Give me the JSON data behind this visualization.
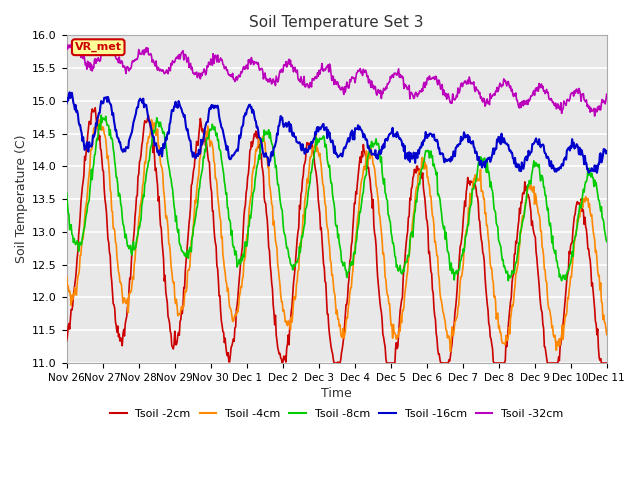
{
  "title": "Soil Temperature Set 3",
  "xlabel": "Time",
  "ylabel": "Soil Temperature (C)",
  "ylim": [
    11.0,
    16.0
  ],
  "yticks": [
    11.0,
    11.5,
    12.0,
    12.5,
    13.0,
    13.5,
    14.0,
    14.5,
    15.0,
    15.5,
    16.0
  ],
  "xtick_labels": [
    "Nov 26",
    "Nov 27",
    "Nov 28",
    "Nov 29",
    "Nov 30",
    "Dec 1",
    "Dec 2",
    "Dec 3",
    "Dec 4",
    "Dec 5",
    "Dec 6",
    "Dec 7",
    "Dec 8",
    "Dec 9",
    "Dec 10",
    "Dec 11"
  ],
  "series": {
    "Tsoil -2cm": {
      "color": "#cc0000",
      "linewidth": 1.2
    },
    "Tsoil -4cm": {
      "color": "#ff8800",
      "linewidth": 1.2
    },
    "Tsoil -8cm": {
      "color": "#00cc00",
      "linewidth": 1.2
    },
    "Tsoil -16cm": {
      "color": "#0000cc",
      "linewidth": 1.5
    },
    "Tsoil -32cm": {
      "color": "#bb00bb",
      "linewidth": 1.2
    }
  },
  "annotation_label": "VR_met",
  "annotation_color": "#cc0000",
  "annotation_bg": "#ffff99",
  "plot_bg": "#e8e8e8",
  "grid_color": "#ffffff",
  "fig_bg": "#ffffff"
}
